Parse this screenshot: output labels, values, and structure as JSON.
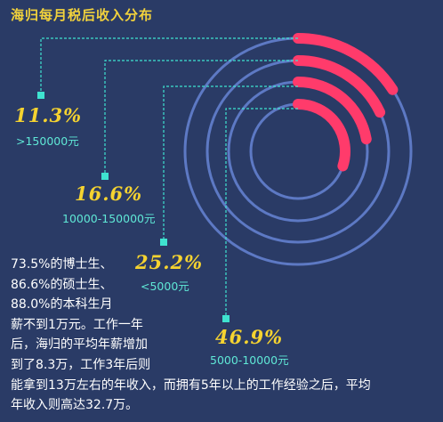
{
  "title": "海归每月税后收入分布",
  "chart_data": {
    "type": "radial-bar",
    "title": "海归每月税后收入分布",
    "categories": [
      ">150000元",
      "10000-150000元",
      "<5000元",
      "5000-10000元"
    ],
    "values": [
      11.3,
      16.6,
      25.2,
      46.9
    ],
    "labels": [
      "11.3%",
      "16.6%",
      "25.2%",
      "46.9%"
    ],
    "unit": "%"
  },
  "colors": {
    "background": "#2a3b66",
    "ring": "#5d79c4",
    "bar": "#ff3b6b",
    "percent_text": "#f5d330",
    "range_text": "#5fe8d6",
    "leader_line": "#3fe3d0"
  },
  "paragraph": [
    "73.5%的博士生、",
    "86.6%的硕士生、",
    "88.0%的本科生月",
    "薪不到1万元。工作一年",
    "后，海归的平均年薪增加",
    "到了8.3万，工作3年后则",
    "能拿到13万左右的年收入，而拥有5年以上的工作经验之后，平均",
    "年收入则高达32.7万。"
  ]
}
